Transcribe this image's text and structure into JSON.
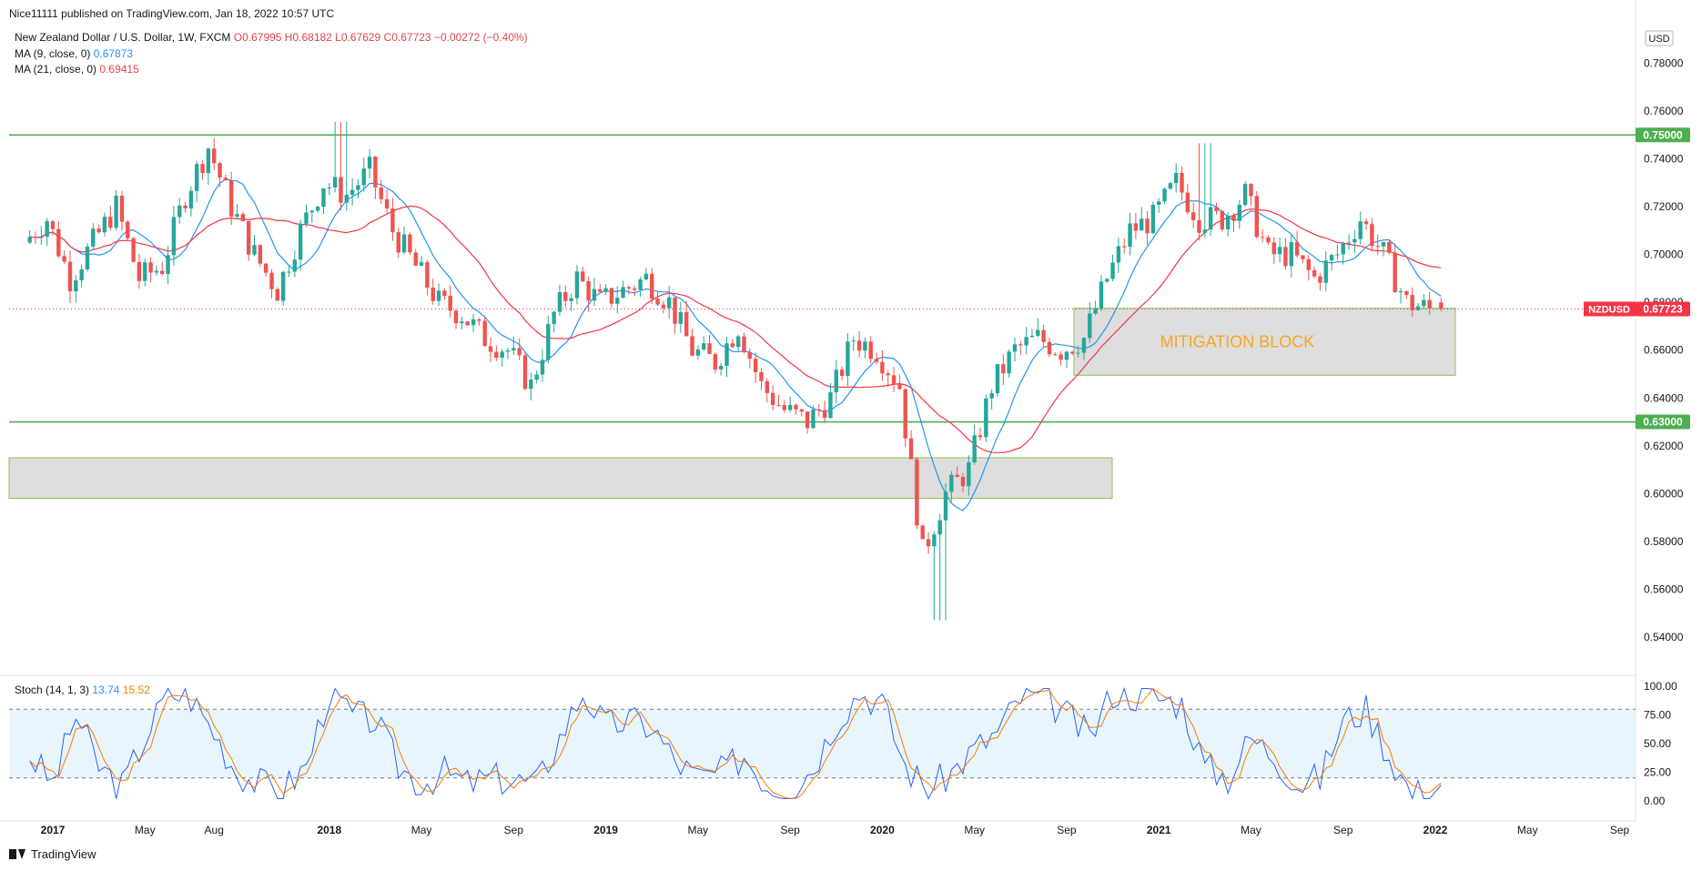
{
  "header": {
    "published": "Nice11111 published on TradingView.com, Jan 18, 2022 10:57 UTC",
    "symbol": "New Zealand Dollar / U.S. Dollar, 1W, FXCM",
    "ohlc": "O0.67995  H0.68182  L0.67629  C0.67723  −0.00272 (−0.40%)",
    "ma9_label": "MA (9, close, 0)",
    "ma9_value": "0.67873",
    "ma21_label": "MA (21, close, 0)",
    "ma21_value": "0.69415",
    "stoch_label": "Stoch (14, 1, 3)",
    "stoch_k": "13.74",
    "stoch_d": "15.52"
  },
  "footer": {
    "brand": "TradingView"
  },
  "colors": {
    "up": "#26a69a",
    "down": "#ef5350",
    "ma9": "#2196f3",
    "ma21": "#f23645",
    "level": "#4caf50",
    "zone_fill": "#d9d9d9",
    "zone_border": "#8bc34a",
    "mitigation_text": "#f5a623",
    "price_tag": "#f23645",
    "stoch_k": "#2962ff",
    "stoch_d": "#f57c00",
    "stoch_band": "#e3f2fd"
  },
  "chart_data": [
    {
      "type": "candlestick",
      "title": "New Zealand Dollar / U.S. Dollar, 1W, FXCM",
      "symbol": "NZDUSD",
      "last_price": "0.67723",
      "currency": "USD",
      "ylim": [
        0.535,
        0.785
      ],
      "y_ticks": [
        "0.78000",
        "0.76000",
        "0.74000",
        "0.72000",
        "0.70000",
        "0.68000",
        "0.66000",
        "0.64000",
        "0.62000",
        "0.60000",
        "0.58000",
        "0.56000",
        "0.54000"
      ],
      "x_ticks": [
        "2017",
        "May",
        "Aug",
        "2018",
        "May",
        "Sep",
        "2019",
        "May",
        "Sep",
        "2020",
        "May",
        "Sep",
        "2021",
        "May",
        "Sep",
        "2022",
        "May",
        "Sep"
      ],
      "horizontal_levels": [
        {
          "value": 0.75,
          "label": "0.75000"
        },
        {
          "value": 0.63,
          "label": "0.63000"
        }
      ],
      "zones": [
        {
          "label": "MITIGATION BLOCK",
          "start": "2020-09",
          "end": "2022-01",
          "low": 0.6495,
          "high": 0.6775
        },
        {
          "label": "",
          "start": "2016-12",
          "end": "2020-10",
          "low": 0.598,
          "high": 0.615
        }
      ],
      "series": [
        {
          "name": "MA (9, close, 0)",
          "last": 0.67873
        },
        {
          "name": "MA (21, close, 0)",
          "last": 0.69415
        }
      ],
      "close_path": [
        {
          "date": "2016-12",
          "close": 0.705
        },
        {
          "date": "2017-01",
          "close": 0.715
        },
        {
          "date": "2017-02",
          "close": 0.69
        },
        {
          "date": "2017-03",
          "close": 0.705
        },
        {
          "date": "2017-04",
          "close": 0.72
        },
        {
          "date": "2017-05",
          "close": 0.69
        },
        {
          "date": "2017-06",
          "close": 0.695
        },
        {
          "date": "2017-07",
          "close": 0.725
        },
        {
          "date": "2017-08",
          "close": 0.745
        },
        {
          "date": "2017-09",
          "close": 0.72
        },
        {
          "date": "2017-10",
          "close": 0.7
        },
        {
          "date": "2017-11",
          "close": 0.685
        },
        {
          "date": "2017-12",
          "close": 0.71
        },
        {
          "date": "2018-01",
          "close": 0.73
        },
        {
          "date": "2018-02",
          "close": 0.725
        },
        {
          "date": "2018-03",
          "close": 0.735
        },
        {
          "date": "2018-04",
          "close": 0.71
        },
        {
          "date": "2018-05",
          "close": 0.695
        },
        {
          "date": "2018-06",
          "close": 0.68
        },
        {
          "date": "2018-07",
          "close": 0.675
        },
        {
          "date": "2018-08",
          "close": 0.665
        },
        {
          "date": "2018-09",
          "close": 0.66
        },
        {
          "date": "2018-10",
          "close": 0.645
        },
        {
          "date": "2018-11",
          "close": 0.675
        },
        {
          "date": "2018-12",
          "close": 0.69
        },
        {
          "date": "2019-01",
          "close": 0.68
        },
        {
          "date": "2019-02",
          "close": 0.685
        },
        {
          "date": "2019-03",
          "close": 0.69
        },
        {
          "date": "2019-04",
          "close": 0.68
        },
        {
          "date": "2019-05",
          "close": 0.66
        },
        {
          "date": "2019-06",
          "close": 0.655
        },
        {
          "date": "2019-07",
          "close": 0.67
        },
        {
          "date": "2019-08",
          "close": 0.645
        },
        {
          "date": "2019-09",
          "close": 0.635
        },
        {
          "date": "2019-10",
          "close": 0.63
        },
        {
          "date": "2019-11",
          "close": 0.64
        },
        {
          "date": "2019-12",
          "close": 0.665
        },
        {
          "date": "2020-01",
          "close": 0.66
        },
        {
          "date": "2020-02",
          "close": 0.645
        },
        {
          "date": "2020-03",
          "close": 0.575
        },
        {
          "date": "2020-04",
          "close": 0.6
        },
        {
          "date": "2020-05",
          "close": 0.61
        },
        {
          "date": "2020-06",
          "close": 0.645
        },
        {
          "date": "2020-07",
          "close": 0.66
        },
        {
          "date": "2020-08",
          "close": 0.665
        },
        {
          "date": "2020-09",
          "close": 0.66
        },
        {
          "date": "2020-10",
          "close": 0.665
        },
        {
          "date": "2020-11",
          "close": 0.69
        },
        {
          "date": "2020-12",
          "close": 0.71
        },
        {
          "date": "2021-01",
          "close": 0.715
        },
        {
          "date": "2021-02",
          "close": 0.73
        },
        {
          "date": "2021-03",
          "close": 0.715
        },
        {
          "date": "2021-04",
          "close": 0.715
        },
        {
          "date": "2021-05",
          "close": 0.725
        },
        {
          "date": "2021-06",
          "close": 0.7
        },
        {
          "date": "2021-07",
          "close": 0.7
        },
        {
          "date": "2021-08",
          "close": 0.69
        },
        {
          "date": "2021-09",
          "close": 0.7
        },
        {
          "date": "2021-10",
          "close": 0.715
        },
        {
          "date": "2021-11",
          "close": 0.7
        },
        {
          "date": "2021-12",
          "close": 0.68
        },
        {
          "date": "2022-01",
          "close": 0.677
        }
      ]
    },
    {
      "type": "line",
      "title": "Stoch (14, 1, 3)",
      "ylim": [
        -5,
        105
      ],
      "y_ticks": [
        "100.00",
        "75.00",
        "50.00",
        "25.00",
        "0.00"
      ],
      "bands": [
        20,
        80
      ],
      "series": [
        {
          "name": "%K",
          "last": 13.74
        },
        {
          "name": "%D",
          "last": 15.52
        }
      ],
      "path": [
        {
          "date": "2016-12",
          "value": 40
        },
        {
          "date": "2017-01",
          "value": 15
        },
        {
          "date": "2017-02",
          "value": 75
        },
        {
          "date": "2017-03",
          "value": 30
        },
        {
          "date": "2017-04",
          "value": 12
        },
        {
          "date": "2017-05",
          "value": 55
        },
        {
          "date": "2017-06",
          "value": 95
        },
        {
          "date": "2017-07",
          "value": 90
        },
        {
          "date": "2017-08",
          "value": 60
        },
        {
          "date": "2017-09",
          "value": 25
        },
        {
          "date": "2017-10",
          "value": 15
        },
        {
          "date": "2017-11",
          "value": 10
        },
        {
          "date": "2017-12",
          "value": 30
        },
        {
          "date": "2018-01",
          "value": 95
        },
        {
          "date": "2018-02",
          "value": 75
        },
        {
          "date": "2018-03",
          "value": 70
        },
        {
          "date": "2018-04",
          "value": 30
        },
        {
          "date": "2018-05",
          "value": 15
        },
        {
          "date": "2018-06",
          "value": 25
        },
        {
          "date": "2018-07",
          "value": 15
        },
        {
          "date": "2018-08",
          "value": 20
        },
        {
          "date": "2018-09",
          "value": 18
        },
        {
          "date": "2018-10",
          "value": 15
        },
        {
          "date": "2018-11",
          "value": 55
        },
        {
          "date": "2018-12",
          "value": 95
        },
        {
          "date": "2019-01",
          "value": 65
        },
        {
          "date": "2019-02",
          "value": 70
        },
        {
          "date": "2019-03",
          "value": 65
        },
        {
          "date": "2019-04",
          "value": 35
        },
        {
          "date": "2019-05",
          "value": 20
        },
        {
          "date": "2019-06",
          "value": 25
        },
        {
          "date": "2019-07",
          "value": 40
        },
        {
          "date": "2019-08",
          "value": 15
        },
        {
          "date": "2019-09",
          "value": 10
        },
        {
          "date": "2019-10",
          "value": 30
        },
        {
          "date": "2019-11",
          "value": 70
        },
        {
          "date": "2019-12",
          "value": 95
        },
        {
          "date": "2020-01",
          "value": 85
        },
        {
          "date": "2020-02",
          "value": 30
        },
        {
          "date": "2020-03",
          "value": 10
        },
        {
          "date": "2020-04",
          "value": 25
        },
        {
          "date": "2020-05",
          "value": 45
        },
        {
          "date": "2020-06",
          "value": 60
        },
        {
          "date": "2020-07",
          "value": 90
        },
        {
          "date": "2020-08",
          "value": 90
        },
        {
          "date": "2020-09",
          "value": 75
        },
        {
          "date": "2020-10",
          "value": 55
        },
        {
          "date": "2020-11",
          "value": 95
        },
        {
          "date": "2020-12",
          "value": 92
        },
        {
          "date": "2021-01",
          "value": 90
        },
        {
          "date": "2021-02",
          "value": 85
        },
        {
          "date": "2021-03",
          "value": 30
        },
        {
          "date": "2021-04",
          "value": 20
        },
        {
          "date": "2021-05",
          "value": 55
        },
        {
          "date": "2021-06",
          "value": 40
        },
        {
          "date": "2021-07",
          "value": 15
        },
        {
          "date": "2021-08",
          "value": 20
        },
        {
          "date": "2021-09",
          "value": 70
        },
        {
          "date": "2021-10",
          "value": 80
        },
        {
          "date": "2021-11",
          "value": 40
        },
        {
          "date": "2021-12",
          "value": 5
        },
        {
          "date": "2022-01",
          "value": 14
        }
      ]
    }
  ]
}
